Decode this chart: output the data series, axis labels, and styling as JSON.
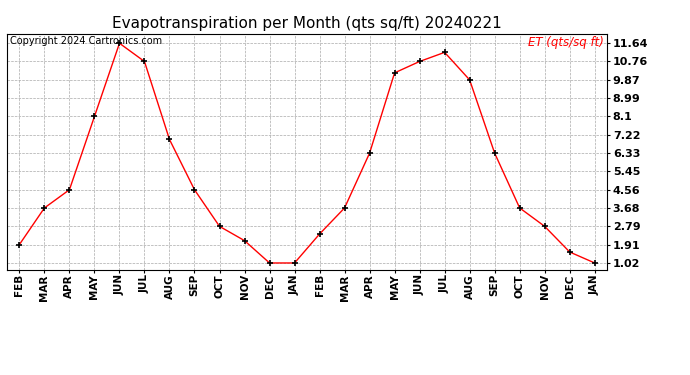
{
  "title": "Evapotranspiration per Month (qts sq/ft) 20240221",
  "copyright": "Copyright 2024 Cartronics.com",
  "legend_label": "ET (qts/sq ft)",
  "months": [
    "FEB",
    "MAR",
    "APR",
    "MAY",
    "JUN",
    "JUL",
    "AUG",
    "SEP",
    "OCT",
    "NOV",
    "DEC",
    "JAN",
    "FEB",
    "MAR",
    "APR",
    "MAY",
    "JUN",
    "JUL",
    "AUG",
    "SEP",
    "OCT",
    "NOV",
    "DEC",
    "JAN"
  ],
  "values": [
    1.91,
    3.68,
    4.56,
    8.1,
    11.64,
    10.76,
    6.99,
    4.56,
    2.79,
    2.1,
    1.02,
    1.02,
    2.42,
    3.68,
    6.33,
    10.21,
    10.76,
    11.2,
    9.87,
    6.33,
    3.68,
    2.79,
    1.55,
    1.02
  ],
  "yticks": [
    1.02,
    1.91,
    2.79,
    3.68,
    4.56,
    5.45,
    6.33,
    7.22,
    8.1,
    8.99,
    9.87,
    10.76,
    11.64
  ],
  "ymin": 0.68,
  "ymax": 12.1,
  "line_color": "red",
  "marker_color": "black",
  "bg_color": "white",
  "grid_color": "#aaaaaa",
  "title_color": "black",
  "copyright_color": "black",
  "legend_color": "red",
  "title_fontsize": 11,
  "copyright_fontsize": 7,
  "legend_fontsize": 8.5,
  "tick_fontsize": 7.5,
  "ytick_fontsize": 8
}
